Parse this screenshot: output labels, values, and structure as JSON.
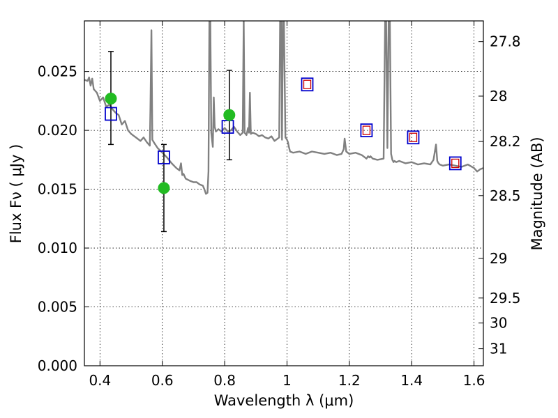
{
  "chart_data": {
    "type": "scatter",
    "x_axis": {
      "label": "Wavelength  λ (μm)",
      "range": [
        0.35,
        1.63
      ],
      "ticks": [
        0.4,
        0.6,
        0.8,
        1.0,
        1.2,
        1.4,
        1.6
      ],
      "tick_labels": [
        "0.4",
        "0.6",
        "0.8",
        "1",
        "1.2",
        "1.4",
        "1.6"
      ]
    },
    "y_axis_left": {
      "label": "Flux  Fν  ( μJy )",
      "range": [
        0.0,
        0.0293
      ],
      "ticks": [
        0.0,
        0.005,
        0.01,
        0.015,
        0.02,
        0.025
      ],
      "tick_labels": [
        "0.000",
        "0.005",
        "0.010",
        "0.015",
        "0.020",
        "0.025"
      ]
    },
    "y_axis_right": {
      "label": "Magnitude (AB)",
      "ticks": [
        27.8,
        28.0,
        28.2,
        28.5,
        29.0,
        29.5,
        30.0,
        31.0
      ],
      "tick_labels": [
        "27.8",
        "28",
        "28.2",
        "28.5",
        "29",
        "29.5",
        "30",
        "31"
      ]
    },
    "grid": true,
    "colors": {
      "spectrum": "#808080",
      "observed": "#22bb22",
      "model_box": "#0000cc",
      "model_box_inner": "#cc0000",
      "errorbar": "#000000"
    },
    "spectrum": {
      "x": [
        0.35,
        0.36,
        0.365,
        0.37,
        0.375,
        0.38,
        0.39,
        0.4,
        0.41,
        0.42,
        0.43,
        0.44,
        0.45,
        0.46,
        0.47,
        0.48,
        0.49,
        0.5,
        0.51,
        0.52,
        0.53,
        0.54,
        0.55,
        0.56,
        0.562,
        0.565,
        0.568,
        0.575,
        0.585,
        0.6,
        0.615,
        0.63,
        0.645,
        0.655,
        0.66,
        0.664,
        0.668,
        0.675,
        0.69,
        0.7,
        0.71,
        0.72,
        0.73,
        0.735,
        0.74,
        0.745,
        0.748,
        0.751,
        0.754,
        0.757,
        0.762,
        0.765,
        0.768,
        0.772,
        0.78,
        0.79,
        0.8,
        0.81,
        0.82,
        0.83,
        0.84,
        0.85,
        0.858,
        0.861,
        0.864,
        0.87,
        0.875,
        0.878,
        0.881,
        0.884,
        0.89,
        0.9,
        0.91,
        0.92,
        0.93,
        0.94,
        0.95,
        0.96,
        0.97,
        0.975,
        0.978,
        0.981,
        0.984,
        0.987,
        0.99,
        0.995,
        1.0,
        1.003,
        1.006,
        1.01,
        1.02,
        1.04,
        1.06,
        1.08,
        1.1,
        1.12,
        1.14,
        1.16,
        1.175,
        1.182,
        1.185,
        1.19,
        1.2,
        1.22,
        1.24,
        1.255,
        1.26,
        1.265,
        1.268,
        1.275,
        1.29,
        1.31,
        1.315,
        1.318,
        1.322,
        1.326,
        1.33,
        1.334,
        1.338,
        1.342,
        1.345,
        1.35,
        1.36,
        1.38,
        1.4,
        1.42,
        1.44,
        1.46,
        1.47,
        1.478,
        1.482,
        1.486,
        1.49,
        1.5,
        1.52,
        1.54,
        1.56,
        1.58,
        1.6,
        1.61,
        1.62,
        1.63
      ],
      "y": [
        0.0243,
        0.0242,
        0.0245,
        0.0238,
        0.0244,
        0.0235,
        0.0232,
        0.0225,
        0.0228,
        0.022,
        0.0222,
        0.0218,
        0.0215,
        0.0213,
        0.0205,
        0.0208,
        0.02,
        0.0197,
        0.0195,
        0.0193,
        0.0191,
        0.0194,
        0.019,
        0.0187,
        0.022,
        0.0285,
        0.0192,
        0.0189,
        0.0185,
        0.0181,
        0.0177,
        0.0172,
        0.0168,
        0.0166,
        0.0172,
        0.0162,
        0.0163,
        0.0159,
        0.0157,
        0.0156,
        0.0156,
        0.0154,
        0.0153,
        0.015,
        0.0146,
        0.0147,
        0.0165,
        0.0295,
        0.0295,
        0.0198,
        0.0186,
        0.0228,
        0.0203,
        0.0199,
        0.0201,
        0.0199,
        0.0202,
        0.0199,
        0.02,
        0.0203,
        0.0199,
        0.0196,
        0.0198,
        0.0295,
        0.0198,
        0.0196,
        0.0202,
        0.0198,
        0.0232,
        0.0197,
        0.0198,
        0.0197,
        0.0195,
        0.0196,
        0.0194,
        0.0193,
        0.0195,
        0.0191,
        0.0193,
        0.0194,
        0.0295,
        0.0295,
        0.0192,
        0.0295,
        0.0295,
        0.0194,
        0.0192,
        0.019,
        0.0186,
        0.0182,
        0.0181,
        0.0182,
        0.018,
        0.0182,
        0.0181,
        0.018,
        0.0181,
        0.0179,
        0.018,
        0.0184,
        0.0193,
        0.0182,
        0.018,
        0.0181,
        0.0179,
        0.0176,
        0.0178,
        0.0177,
        0.0178,
        0.0176,
        0.0175,
        0.0176,
        0.0295,
        0.0295,
        0.0185,
        0.0295,
        0.0295,
        0.018,
        0.0175,
        0.0173,
        0.0174,
        0.0173,
        0.0174,
        0.0172,
        0.0173,
        0.0171,
        0.0172,
        0.0171,
        0.0175,
        0.0188,
        0.0174,
        0.0172,
        0.0171,
        0.017,
        0.0171,
        0.017,
        0.0169,
        0.0171,
        0.0168,
        0.0165,
        0.0167,
        0.0168
      ]
    },
    "observed_points": [
      {
        "x": 0.435,
        "y": 0.0227,
        "yerr_low": 0.0188,
        "yerr_high": 0.0267
      },
      {
        "x": 0.605,
        "y": 0.0151,
        "yerr_low": 0.0114,
        "yerr_high": 0.0188
      },
      {
        "x": 0.815,
        "y": 0.0213,
        "yerr_low": 0.0175,
        "yerr_high": 0.0251
      }
    ],
    "model_points": [
      {
        "x": 0.435,
        "y": 0.0214
      },
      {
        "x": 0.605,
        "y": 0.0177
      },
      {
        "x": 0.81,
        "y": 0.0203
      },
      {
        "x": 1.065,
        "y": 0.0239
      },
      {
        "x": 1.255,
        "y": 0.02
      },
      {
        "x": 1.405,
        "y": 0.0194
      },
      {
        "x": 1.54,
        "y": 0.0172
      }
    ],
    "inner_marker_x_threshold": 1.0
  }
}
